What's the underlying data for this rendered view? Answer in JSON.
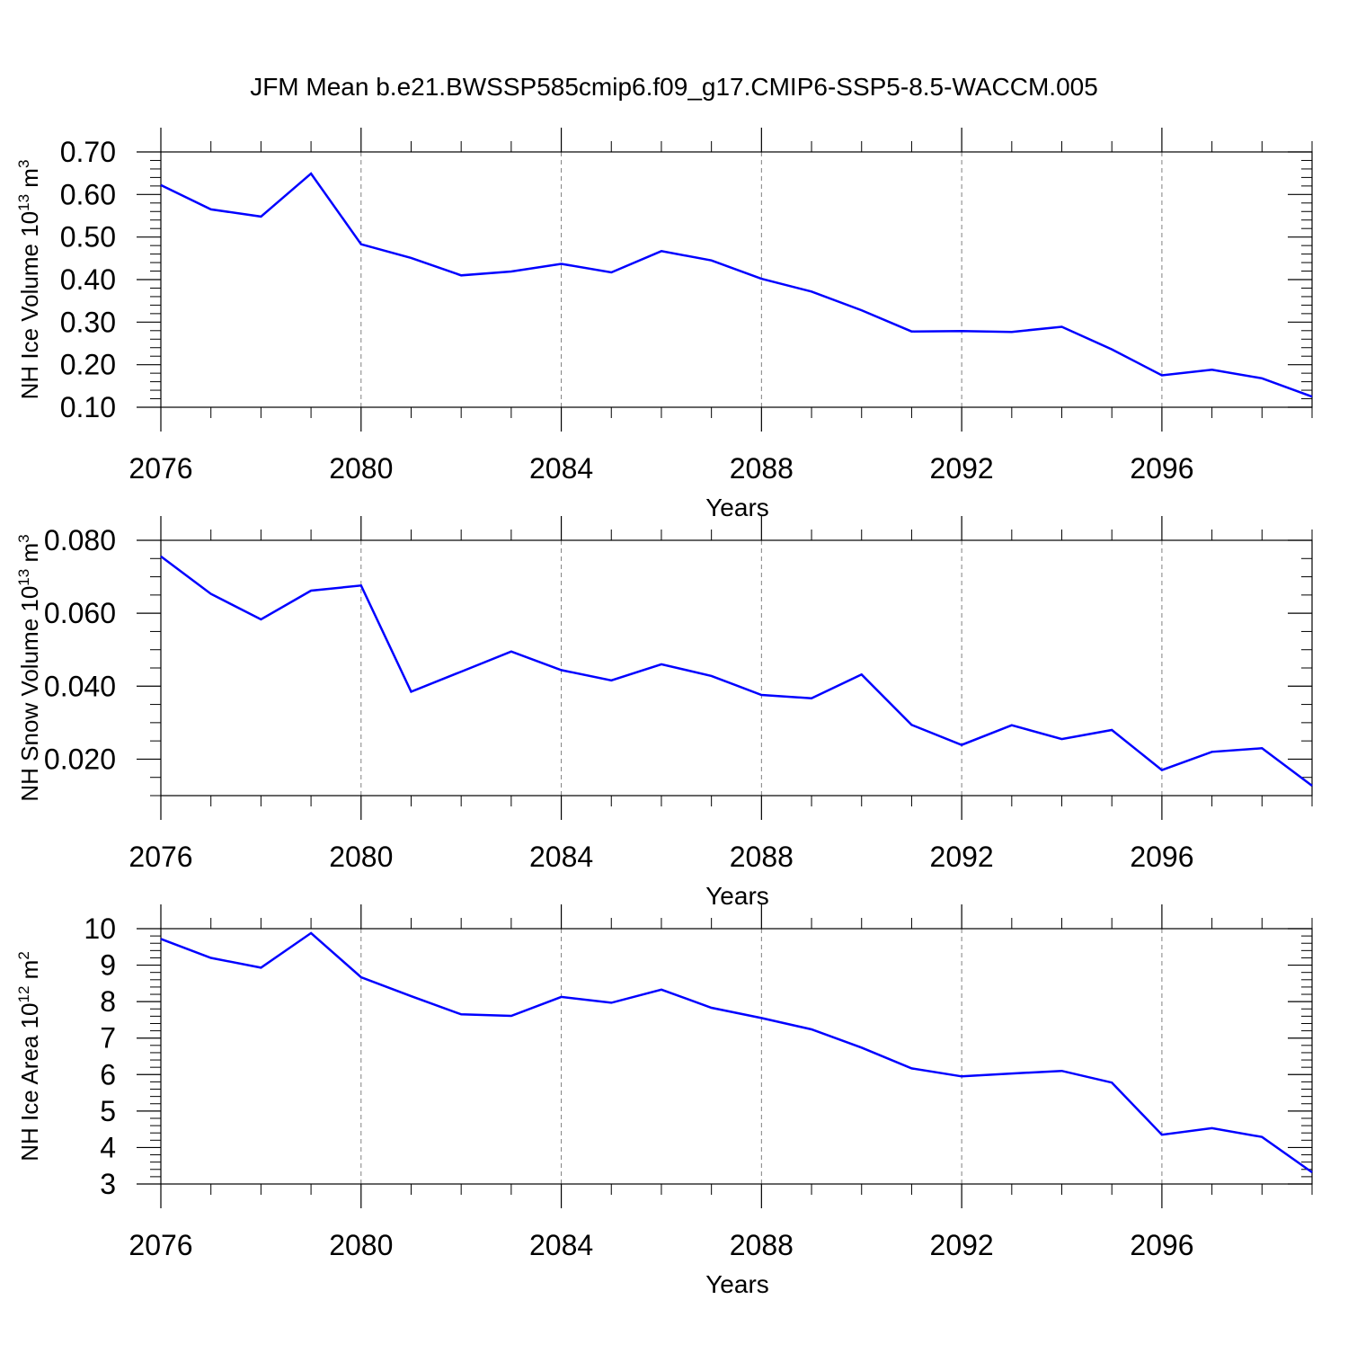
{
  "title": "JFM Mean b.e21.BWSSP585cmip6.f09_g17.CMIP6-SSP5-8.5-WACCM.005",
  "line_color": "#0000ff",
  "grid_color": "#808080",
  "chart_data": [
    {
      "type": "line",
      "ylabel": {
        "main": "NH Ice Volume 10",
        "sup": "13",
        "unit": " m",
        "unit_sup": "3"
      },
      "xlabel": "Years",
      "xlim": [
        2076,
        2099
      ],
      "x_ticks": [
        2076,
        2080,
        2084,
        2088,
        2092,
        2096
      ],
      "x_tick_labels": [
        "2076",
        "2080",
        "2084",
        "2088",
        "2092",
        "2096"
      ],
      "ylim": [
        0.1,
        0.7
      ],
      "y_ticks": [
        0.1,
        0.2,
        0.3,
        0.4,
        0.5,
        0.6,
        0.7
      ],
      "y_tick_labels": [
        "0.10",
        "0.20",
        "0.30",
        "0.40",
        "0.50",
        "0.60",
        "0.70"
      ],
      "y_minor_step": 0.02,
      "x": [
        2076,
        2077,
        2078,
        2079,
        2080,
        2081,
        2082,
        2083,
        2084,
        2085,
        2086,
        2087,
        2088,
        2089,
        2090,
        2091,
        2092,
        2093,
        2094,
        2095,
        2096,
        2097,
        2098,
        2099
      ],
      "values": [
        0.622,
        0.565,
        0.548,
        0.649,
        0.483,
        0.451,
        0.41,
        0.419,
        0.437,
        0.417,
        0.467,
        0.445,
        0.402,
        0.372,
        0.328,
        0.278,
        0.279,
        0.277,
        0.289,
        0.236,
        0.175,
        0.188,
        0.168,
        0.125
      ]
    },
    {
      "type": "line",
      "ylabel": {
        "main": "NH Snow Volume 10",
        "sup": "13",
        "unit": " m",
        "unit_sup": "3"
      },
      "xlabel": "Years",
      "xlim": [
        2076,
        2099
      ],
      "x_ticks": [
        2076,
        2080,
        2084,
        2088,
        2092,
        2096
      ],
      "x_tick_labels": [
        "2076",
        "2080",
        "2084",
        "2088",
        "2092",
        "2096"
      ],
      "ylim": [
        0.01,
        0.08
      ],
      "y_ticks": [
        0.02,
        0.04,
        0.06,
        0.08
      ],
      "y_tick_labels": [
        "0.020",
        "0.040",
        "0.060",
        "0.080"
      ],
      "y_minor_step": 0.005,
      "x": [
        2076,
        2077,
        2078,
        2079,
        2080,
        2081,
        2082,
        2083,
        2084,
        2085,
        2086,
        2087,
        2088,
        2089,
        2090,
        2091,
        2092,
        2093,
        2094,
        2095,
        2096,
        2097,
        2098,
        2099
      ],
      "values": [
        0.0756,
        0.0653,
        0.0583,
        0.0662,
        0.0676,
        0.0385,
        0.044,
        0.0495,
        0.0444,
        0.0416,
        0.046,
        0.0428,
        0.0376,
        0.0367,
        0.0432,
        0.0294,
        0.0239,
        0.0293,
        0.0255,
        0.028,
        0.017,
        0.022,
        0.023,
        0.0127
      ]
    },
    {
      "type": "line",
      "ylabel": {
        "main": "NH Ice Area 10",
        "sup": "12",
        "unit": " m",
        "unit_sup": "2"
      },
      "xlabel": "Years",
      "xlim": [
        2076,
        2099
      ],
      "x_ticks": [
        2076,
        2080,
        2084,
        2088,
        2092,
        2096
      ],
      "x_tick_labels": [
        "2076",
        "2080",
        "2084",
        "2088",
        "2092",
        "2096"
      ],
      "ylim": [
        3,
        10
      ],
      "y_ticks": [
        3,
        4,
        5,
        6,
        7,
        8,
        9,
        10
      ],
      "y_tick_labels": [
        "3",
        "4",
        "5",
        "6",
        "7",
        "8",
        "9",
        "10"
      ],
      "y_minor_step": 0.2,
      "x": [
        2076,
        2077,
        2078,
        2079,
        2080,
        2081,
        2082,
        2083,
        2084,
        2085,
        2086,
        2087,
        2088,
        2089,
        2090,
        2091,
        2092,
        2093,
        2094,
        2095,
        2096,
        2097,
        2098,
        2099
      ],
      "values": [
        9.72,
        9.2,
        8.93,
        9.88,
        8.67,
        8.15,
        7.65,
        7.61,
        8.13,
        7.97,
        8.33,
        7.83,
        7.55,
        7.24,
        6.74,
        6.17,
        5.95,
        6.03,
        6.1,
        5.78,
        4.35,
        4.53,
        4.29,
        3.32
      ]
    }
  ]
}
